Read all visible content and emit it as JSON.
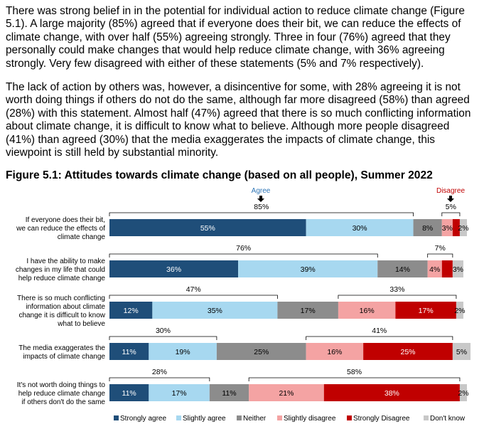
{
  "text": {
    "paragraph1": "There was strong belief in in the potential for individual action to reduce climate change (Figure 5.1). A large majority (85%) agreed that if everyone does their bit, we can reduce the effects of climate change, with over half (55%) agreeing strongly. Three in four (76%) agreed that they personally could make changes that would help reduce climate change, with 36% agreeing strongly. Very few disagreed with either of these statements (5% and 7% respectively).",
    "paragraph2": "The lack of action by others was, however, a disincentive for some, with 28% agreeing it is not worth doing things if others do not do the same, although far more disagreed (58%) than agreed (28%) with this statement. Almost half (47%) agreed that there is so much conflicting information about climate change, it is difficult to know what to believe. Although more people disagreed (41%) than agreed (30%) that the media exaggerates the impacts of climate change, this viewpoint is still held by substantial minority.",
    "figure_title": "Figure 5.1: Attitudes towards climate change (based on all people), Summer 2022"
  },
  "colors": {
    "Strongly agree": "#1f4e79",
    "Slightly agree": "#a7d8f0",
    "Neither": "#8c8c8c",
    "Slightly disagree": "#f4a3a3",
    "Strongly Disagree": "#c00000",
    "Don't know": "#c8c8c8",
    "agree_header": "#2e75b6",
    "disagree_header": "#c00000"
  },
  "chart_data": {
    "type": "bar",
    "orientation": "horizontal",
    "stacked": true,
    "headers": {
      "agree": "Agree",
      "disagree": "Disagree"
    },
    "series_names": [
      "Strongly agree",
      "Slightly agree",
      "Neither",
      "Slightly disagree",
      "Strongly Disagree",
      "Don't know"
    ],
    "rows": [
      {
        "label_lines": [
          "If everyone does their bit,",
          "we can reduce the effects of",
          "climate change"
        ],
        "values": [
          55,
          30,
          8,
          3,
          2,
          2
        ],
        "value_labels": [
          "55%",
          "30%",
          "8%",
          "3%",
          "",
          "2%"
        ],
        "agree_total": "85%",
        "disagree_total": "5%"
      },
      {
        "label_lines": [
          "I have the ability to make",
          "changes in my life that could",
          "help reduce climate change"
        ],
        "values": [
          36,
          39,
          14,
          4,
          3,
          3
        ],
        "value_labels": [
          "36%",
          "39%",
          "14%",
          "4%",
          "",
          "3%"
        ],
        "agree_total": "76%",
        "disagree_total": "7%"
      },
      {
        "label_lines": [
          "There is so much conflicting",
          "information about climate",
          "change it is difficult to know",
          "what to believe"
        ],
        "values": [
          12,
          35,
          17,
          16,
          17,
          2
        ],
        "value_labels": [
          "12%",
          "35%",
          "17%",
          "16%",
          "17%",
          "2%"
        ],
        "agree_total": "47%",
        "disagree_total": "33%"
      },
      {
        "label_lines": [
          "The media exaggerates the",
          "impacts of climate change"
        ],
        "values": [
          11,
          19,
          25,
          16,
          25,
          5
        ],
        "value_labels": [
          "11%",
          "19%",
          "25%",
          "16%",
          "25%",
          "5%"
        ],
        "agree_total": "30%",
        "disagree_total": "41%"
      },
      {
        "label_lines": [
          "It's not worth doing things to",
          "help reduce climate change",
          "if others don't do the same"
        ],
        "values": [
          11,
          17,
          11,
          21,
          38,
          2
        ],
        "value_labels": [
          "11%",
          "17%",
          "11%",
          "21%",
          "38%",
          "2%"
        ],
        "agree_total": "28%",
        "disagree_total": "58%"
      }
    ],
    "legend_position": "bottom"
  }
}
